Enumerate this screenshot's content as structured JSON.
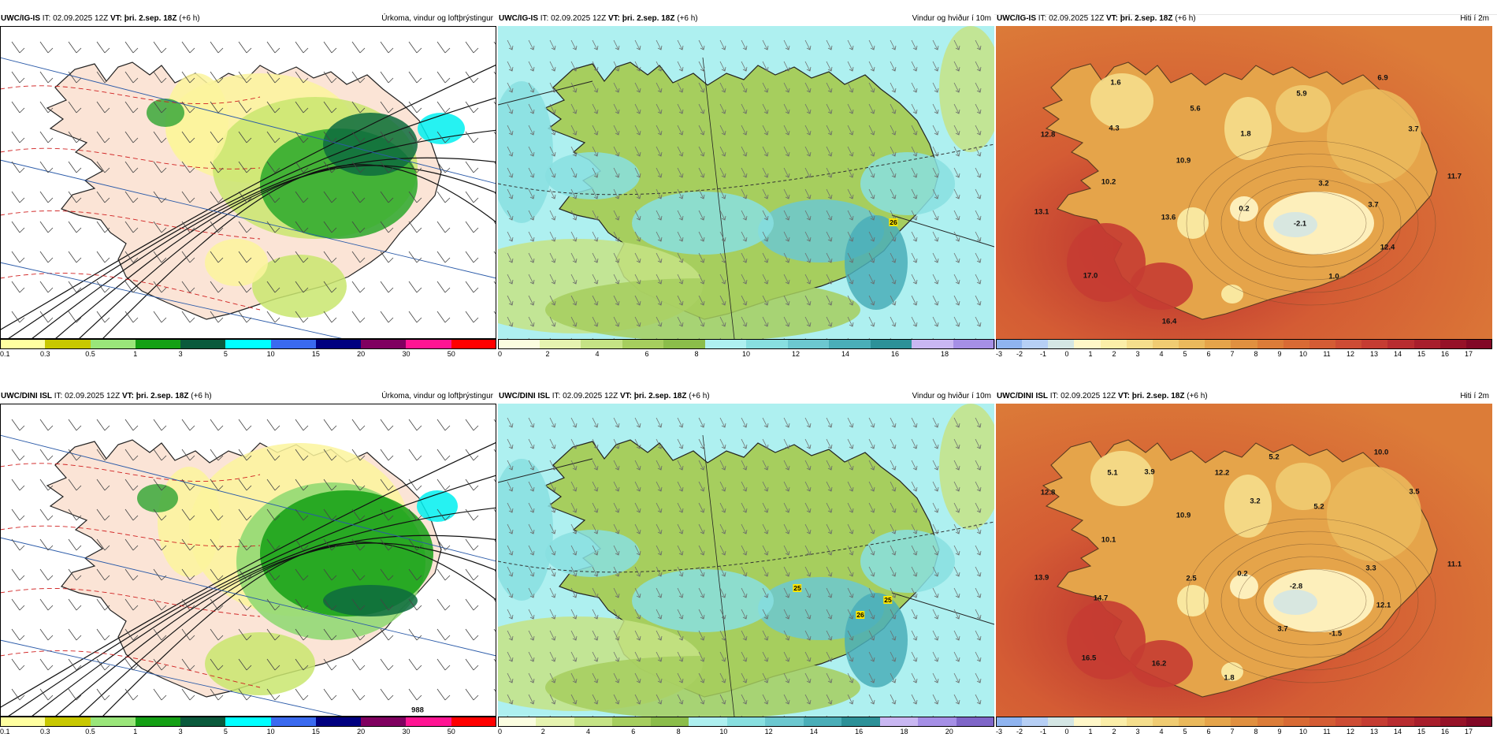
{
  "panels": [
    {
      "id": "igis-precip",
      "model": "UWC/IG-IS",
      "it_label": "IT:",
      "it_value": "02.09.2025 12Z",
      "vt_label": "VT:",
      "vt_value": "þri. 2.sep. 18Z",
      "lead": "(+6 h)",
      "title": "Úrkoma, vindur og loftþrýstingur",
      "colorbar": {
        "colors": [
          "#ffffa0",
          "#c8c800",
          "#9ae67a",
          "#14a014",
          "#0a5a3c",
          "#00ffff",
          "#3a6af0",
          "#000080",
          "#800060",
          "#ff1493",
          "#ff0000"
        ],
        "labels": [
          "0.1",
          "0.3",
          "0.5",
          "1",
          "3",
          "5",
          "10",
          "15",
          "20",
          "30",
          "50"
        ]
      },
      "map_labels": []
    },
    {
      "id": "igis-wind",
      "model": "UWC/IG-IS",
      "it_label": "IT:",
      "it_value": "02.09.2025 12Z",
      "vt_label": "VT:",
      "vt_value": "þri. 2.sep. 18Z",
      "lead": "(+6 h)",
      "title": "Vindur og hviður í 10m",
      "colorbar": {
        "colors": [
          "#fbfde0",
          "#e6f3b0",
          "#c5e385",
          "#a6ce5e",
          "#8bbd4a",
          "#aef0f0",
          "#88dfe0",
          "#6cc8d0",
          "#4aaeb8",
          "#2c9198",
          "#c9b7f2",
          "#a58fe6"
        ],
        "labels": [
          "0",
          "2",
          "4",
          "6",
          "8",
          "10",
          "12",
          "14",
          "16",
          "18"
        ]
      },
      "map_labels": [
        {
          "text": "26",
          "x": 502,
          "y": 249
        }
      ]
    },
    {
      "id": "igis-temp",
      "model": "UWC/IG-IS",
      "it_label": "IT:",
      "it_value": "02.09.2025 12Z",
      "vt_label": "VT:",
      "vt_value": "þri. 2.sep. 18Z",
      "lead": "(+6 h)",
      "title": "Hiti í 2m",
      "colorbar": {
        "colors": [
          "#8fb4f0",
          "#b6cff5",
          "#d4e6e4",
          "#fff7c8",
          "#fbeea8",
          "#f5de8c",
          "#f0cc72",
          "#eab95c",
          "#e5a44a",
          "#e09040",
          "#dc7c38",
          "#d86a34",
          "#d45c34",
          "#cd4c34",
          "#c53c32",
          "#b82c30",
          "#a81e2c",
          "#961228",
          "#820826"
        ],
        "labels": [
          "-3",
          "-2",
          "-1",
          "0",
          "1",
          "2",
          "3",
          "4",
          "5",
          "6",
          "7",
          "8",
          "9",
          "10",
          "11",
          "12",
          "13",
          "14",
          "15",
          "16",
          "17"
        ]
      },
      "map_labels": [
        {
          "text": "1.6",
          "x": 152,
          "y": 72
        },
        {
          "text": "6.9",
          "x": 491,
          "y": 66
        },
        {
          "text": "5.9",
          "x": 388,
          "y": 86
        },
        {
          "text": "12.8",
          "x": 66,
          "y": 138
        },
        {
          "text": "4.3",
          "x": 150,
          "y": 130
        },
        {
          "text": "5.6",
          "x": 253,
          "y": 105
        },
        {
          "text": "1.8",
          "x": 317,
          "y": 137
        },
        {
          "text": "3.7",
          "x": 530,
          "y": 131
        },
        {
          "text": "10.9",
          "x": 238,
          "y": 171
        },
        {
          "text": "10.2",
          "x": 143,
          "y": 198
        },
        {
          "text": "3.2",
          "x": 416,
          "y": 200
        },
        {
          "text": "11.7",
          "x": 582,
          "y": 191
        },
        {
          "text": "13.1",
          "x": 58,
          "y": 236
        },
        {
          "text": "13.6",
          "x": 219,
          "y": 243
        },
        {
          "text": "0.2",
          "x": 315,
          "y": 232
        },
        {
          "text": "3.7",
          "x": 479,
          "y": 227
        },
        {
          "text": "-2.1",
          "x": 386,
          "y": 251
        },
        {
          "text": "12.4",
          "x": 497,
          "y": 281
        },
        {
          "text": "17.0",
          "x": 120,
          "y": 317
        },
        {
          "text": "1.0",
          "x": 429,
          "y": 318
        },
        {
          "text": "16.4",
          "x": 220,
          "y": 375
        }
      ]
    },
    {
      "id": "dini-precip",
      "model": "UWC/DINI ISL",
      "it_label": "IT:",
      "it_value": "02.09.2025 12Z",
      "vt_label": "VT:",
      "vt_value": "þri. 2.sep. 18Z",
      "lead": "(+6 h)",
      "title": "Úrkoma, vindur og loftþrýstingur",
      "colorbar": {
        "colors": [
          "#ffffa0",
          "#c8c800",
          "#9ae67a",
          "#14a014",
          "#0a5a3c",
          "#00ffff",
          "#3a6af0",
          "#000080",
          "#800060",
          "#ff1493",
          "#ff0000"
        ],
        "labels": [
          "0.1",
          "0.3",
          "0.5",
          "1",
          "3",
          "5",
          "10",
          "15",
          "20",
          "30",
          "50"
        ]
      },
      "map_labels": [
        {
          "text": "988",
          "x": 530,
          "y": 389
        }
      ]
    },
    {
      "id": "dini-wind",
      "model": "UWC/DINI ISL",
      "it_label": "IT:",
      "it_value": "02.09.2025 12Z",
      "vt_label": "VT:",
      "vt_value": "þri. 2.sep. 18Z",
      "lead": "(+6 h)",
      "title": "Vindur og hviður í 10m",
      "colorbar": {
        "colors": [
          "#fbfde0",
          "#e6f3b0",
          "#c5e385",
          "#a6ce5e",
          "#8bbd4a",
          "#aef0f0",
          "#88dfe0",
          "#6cc8d0",
          "#4aaeb8",
          "#2c9198",
          "#c9b7f2",
          "#a58fe6",
          "#7f66c8"
        ],
        "labels": [
          "0",
          "2",
          "4",
          "6",
          "8",
          "10",
          "12",
          "14",
          "16",
          "18",
          "20"
        ]
      },
      "map_labels": [
        {
          "text": "25",
          "x": 380,
          "y": 234
        },
        {
          "text": "25",
          "x": 495,
          "y": 249
        },
        {
          "text": "26",
          "x": 460,
          "y": 268
        }
      ]
    },
    {
      "id": "dini-temp",
      "model": "UWC/DINI ISL",
      "it_label": "IT:",
      "it_value": "02.09.2025 12Z",
      "vt_label": "VT:",
      "vt_value": "þri. 2.sep. 18Z",
      "lead": "(+6 h)",
      "title": "Hiti í 2m",
      "colorbar": {
        "colors": [
          "#8fb4f0",
          "#b6cff5",
          "#d4e6e4",
          "#fff7c8",
          "#fbeea8",
          "#f5de8c",
          "#f0cc72",
          "#eab95c",
          "#e5a44a",
          "#e09040",
          "#dc7c38",
          "#d86a34",
          "#d45c34",
          "#cd4c34",
          "#c53c32",
          "#b82c30",
          "#a81e2c",
          "#961228",
          "#820826"
        ],
        "labels": [
          "-3",
          "-2",
          "-1",
          "0",
          "1",
          "2",
          "3",
          "4",
          "5",
          "6",
          "7",
          "8",
          "9",
          "10",
          "11",
          "12",
          "13",
          "14",
          "15",
          "16",
          "17"
        ]
      },
      "map_labels": [
        {
          "text": "10.0",
          "x": 489,
          "y": 62
        },
        {
          "text": "5.2",
          "x": 353,
          "y": 68
        },
        {
          "text": "5.1",
          "x": 148,
          "y": 88
        },
        {
          "text": "3.9",
          "x": 195,
          "y": 87
        },
        {
          "text": "12.2",
          "x": 287,
          "y": 88
        },
        {
          "text": "12.8",
          "x": 66,
          "y": 113
        },
        {
          "text": "3.5",
          "x": 531,
          "y": 112
        },
        {
          "text": "3.2",
          "x": 329,
          "y": 124
        },
        {
          "text": "5.2",
          "x": 410,
          "y": 131
        },
        {
          "text": "10.9",
          "x": 238,
          "y": 142
        },
        {
          "text": "10.1",
          "x": 143,
          "y": 173
        },
        {
          "text": "11.1",
          "x": 582,
          "y": 204
        },
        {
          "text": "13.9",
          "x": 58,
          "y": 221
        },
        {
          "text": "2.5",
          "x": 248,
          "y": 222
        },
        {
          "text": "0.2",
          "x": 313,
          "y": 216
        },
        {
          "text": "3.3",
          "x": 476,
          "y": 209
        },
        {
          "text": "-2.8",
          "x": 381,
          "y": 232
        },
        {
          "text": "14.7",
          "x": 133,
          "y": 247
        },
        {
          "text": "12.1",
          "x": 492,
          "y": 256
        },
        {
          "text": "3.7",
          "x": 364,
          "y": 286
        },
        {
          "text": "-1.5",
          "x": 431,
          "y": 292
        },
        {
          "text": "16.5",
          "x": 118,
          "y": 323
        },
        {
          "text": "16.2",
          "x": 207,
          "y": 330
        },
        {
          "text": "1.8",
          "x": 296,
          "y": 348
        }
      ]
    }
  ]
}
